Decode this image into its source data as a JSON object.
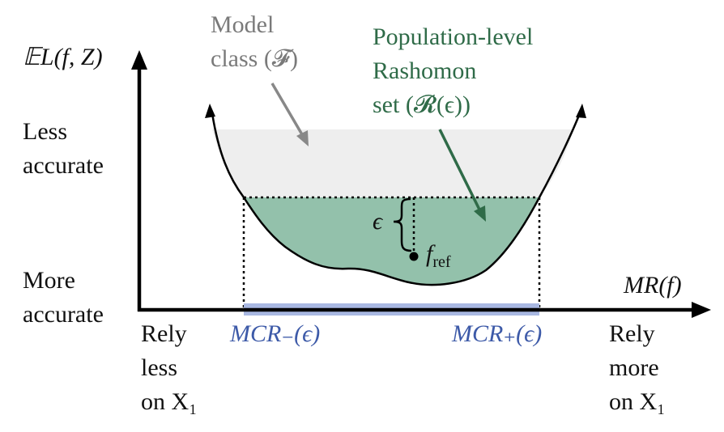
{
  "colors": {
    "axis": "#000000",
    "model_class_fill": "#eeeeee",
    "rashomon_fill": "#93c1ab",
    "rashomon_text": "#2f6b48",
    "model_class_text": "#7a7a7a",
    "mcr_interval": "#a9b8e2",
    "mcr_text": "#3d5aa8"
  },
  "y_axis": {
    "label": "𝔼L(f, Z)",
    "top_label_lines": [
      "Less",
      "accurate"
    ],
    "bottom_label_lines": [
      "More",
      "accurate"
    ]
  },
  "x_axis": {
    "label": "MR(f)",
    "left_label_lines": [
      "Rely",
      "less",
      "on X₁"
    ],
    "right_label_lines": [
      "Rely",
      "more",
      "on X₁"
    ]
  },
  "model_class": {
    "label_lines": [
      "Model",
      "class (𝓕)"
    ]
  },
  "rashomon_set": {
    "label_lines": [
      "Population-level",
      "Rashomon",
      "set (𝓡(ϵ))"
    ]
  },
  "epsilon_label": "ϵ",
  "f_ref": {
    "base": "f",
    "subscript": "ref"
  },
  "mcr": {
    "minus_label": "MCR₋(ϵ)",
    "plus_label": "MCR₊(ϵ)"
  }
}
